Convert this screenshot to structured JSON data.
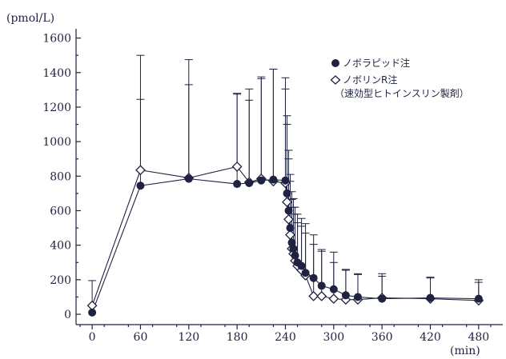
{
  "chart_data": {
    "type": "line",
    "title": "",
    "xlabel": "(min)",
    "ylabel": "(pmol/L)",
    "xlim": [
      -20,
      510
    ],
    "ylim": [
      -60,
      1700
    ],
    "x_ticks": [
      0,
      60,
      120,
      180,
      240,
      300,
      360,
      420,
      480
    ],
    "y_ticks": [
      0,
      200,
      400,
      600,
      800,
      1000,
      1200,
      1400,
      1600
    ],
    "legend": {
      "position": "top-right",
      "entries": [
        {
          "label": "ノボラピッド注",
          "marker": "filled-circle"
        },
        {
          "label": "ノボリンR注",
          "sublabel": "（速効型ヒトインスリン製剤）",
          "marker": "open-diamond"
        }
      ]
    },
    "colors": {
      "series_filled": "#1f2240",
      "series_open": "#ffffff",
      "axis": "#1f2240"
    },
    "series": [
      {
        "name": "ノボラピッド注",
        "marker": "filled-circle",
        "x": [
          0,
          60,
          120,
          180,
          195,
          210,
          225,
          240,
          242,
          244,
          246,
          248,
          250,
          252,
          255,
          260,
          265,
          275,
          285,
          300,
          315,
          330,
          360,
          420,
          480
        ],
        "y": [
          10,
          745,
          785,
          755,
          760,
          775,
          780,
          775,
          700,
          600,
          500,
          415,
          380,
          340,
          300,
          280,
          240,
          210,
          165,
          145,
          110,
          100,
          90,
          95,
          90
        ],
        "err": [
          0,
          500,
          690,
          520,
          480,
          600,
          640,
          530,
          400,
          300,
          270,
          250,
          240,
          240,
          230,
          230,
          230,
          250,
          200,
          155,
          150,
          130,
          130,
          120,
          110
        ]
      },
      {
        "name": "ノボリンR注",
        "marker": "open-diamond",
        "x": [
          0,
          60,
          120,
          180,
          195,
          210,
          225,
          240,
          242,
          244,
          246,
          248,
          250,
          252,
          255,
          260,
          265,
          275,
          285,
          300,
          315,
          330,
          360,
          420,
          480
        ],
        "y": [
          50,
          835,
          790,
          855,
          765,
          785,
          770,
          760,
          650,
          550,
          460,
          380,
          350,
          310,
          280,
          255,
          225,
          105,
          105,
          90,
          85,
          85,
          95,
          90,
          80
        ],
        "err": [
          145,
          665,
          540,
          425,
          540,
          580,
          650,
          610,
          500,
          400,
          350,
          330,
          320,
          310,
          300,
          300,
          300,
          300,
          270,
          270,
          170,
          150,
          140,
          120,
          105
        ]
      }
    ]
  }
}
